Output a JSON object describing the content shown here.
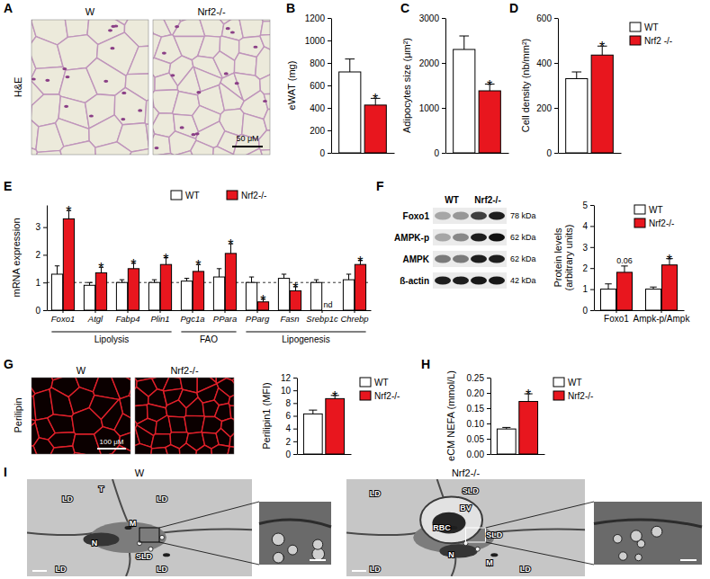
{
  "panel_labels": [
    "A",
    "B",
    "C",
    "D",
    "E",
    "F",
    "G",
    "H",
    "I"
  ],
  "panel_a": {
    "columns": [
      "W",
      "Nrf2-/-"
    ],
    "row_label": "H&E",
    "scale_bar": "50 μM"
  },
  "panel_f_blot": {
    "columns": [
      "WT",
      "Nrf2-/-"
    ],
    "rows": [
      {
        "label": "Foxo1",
        "size": "78 kDa"
      },
      {
        "label": "AMPK-p",
        "size": "62 kDa"
      },
      {
        "label": "AMPK",
        "size": "62 kDa"
      },
      {
        "label": "ß-actin",
        "size": "42 kDa"
      }
    ]
  },
  "panel_g": {
    "columns": [
      "W",
      "Nrf2-/-"
    ],
    "row_label": "Perilipin",
    "scale_bar": "100 μM"
  },
  "panel_i": {
    "columns": [
      {
        "title": "W",
        "labels": [
          "T",
          "LD",
          "LD",
          "M",
          "N",
          "SLD",
          "LD",
          "LD"
        ]
      },
      {
        "title": "Nrf2-/-",
        "labels": [
          "LD",
          "SLD",
          "BV",
          "RBC",
          "SLD",
          "N",
          "M",
          "LD",
          "LD"
        ]
      }
    ]
  },
  "chart_data": [
    {
      "type": "bar",
      "y_label": "eWAT (mg)",
      "categories": [
        null
      ],
      "ylim": [
        0,
        1200
      ],
      "yticks": [
        0,
        200,
        400,
        600,
        800,
        1000,
        1200
      ],
      "series": [
        {
          "color": "#ffffff",
          "values": [
            720
          ],
          "errors": [
            115
          ],
          "annotations": [
            null
          ]
        },
        {
          "color": "#e8161e",
          "values": [
            425
          ],
          "errors": [
            60
          ],
          "annotations": [
            "*"
          ]
        }
      ]
    },
    {
      "type": "bar",
      "y_label": "Adipocytes size (μm²)",
      "categories": [
        null
      ],
      "ylim": [
        0,
        3000
      ],
      "yticks": [
        0,
        1000,
        2000,
        3000
      ],
      "series": [
        {
          "color": "#ffffff",
          "values": [
            2300
          ],
          "errors": [
            300
          ],
          "annotations": [
            null
          ]
        },
        {
          "color": "#e8161e",
          "values": [
            1380
          ],
          "errors": [
            150
          ],
          "annotations": [
            "*"
          ]
        }
      ]
    },
    {
      "type": "bar",
      "y_label": "Cell density (nb/mm²)",
      "categories": [
        null
      ],
      "ylim": [
        0,
        600
      ],
      "yticks": [
        0,
        200,
        400,
        600
      ],
      "legend": "top-right",
      "series": [
        {
          "name": "WT",
          "color": "#ffffff",
          "values": [
            330
          ],
          "errors": [
            30
          ],
          "annotations": [
            null
          ]
        },
        {
          "name": "Nrf2 -/-",
          "color": "#e8161e",
          "values": [
            435
          ],
          "errors": [
            40
          ],
          "annotations": [
            "*"
          ]
        }
      ]
    },
    {
      "type": "bar",
      "y_label": "mRNA expression",
      "categories": [
        "Foxo1",
        "Atgl",
        "Fabp4",
        "Plin1",
        "Pgc1a",
        "PPara",
        "PParg",
        "Fasn",
        "Srebp1c",
        "Chrebp"
      ],
      "ylim": [
        0,
        3.8
      ],
      "yticks": [
        0,
        1,
        2,
        3
      ],
      "reference_value": 1,
      "legend": "top",
      "groups": [
        {
          "label": "Lipolysis",
          "categories": [
            "Foxo1",
            "Atgl",
            "Fabp4",
            "Plin1"
          ]
        },
        {
          "label": "FAO",
          "categories": [
            "Pgc1a",
            "PPara"
          ]
        },
        {
          "label": "Lipogenesis",
          "categories": [
            "PParg",
            "Fasn",
            "Srebp1c",
            "Chrebp"
          ]
        }
      ],
      "series": [
        {
          "name": "WT",
          "color": "#ffffff",
          "values": [
            1.3,
            0.9,
            1.0,
            1.0,
            1.05,
            1.2,
            1.0,
            1.15,
            1.0,
            1.1
          ],
          "errors": [
            0.3,
            0.1,
            0.1,
            0.1,
            0.1,
            0.3,
            0.2,
            0.15,
            0.1,
            0.2
          ],
          "annotations": [
            null,
            null,
            null,
            null,
            null,
            null,
            null,
            null,
            null,
            null
          ]
        },
        {
          "name": "Nrf2-/-",
          "color": "#e8161e",
          "values": [
            3.3,
            1.35,
            1.5,
            1.65,
            1.4,
            2.05,
            0.3,
            0.7,
            null,
            1.65
          ],
          "errors": [
            0.3,
            0.2,
            0.2,
            0.25,
            0.25,
            0.35,
            0.1,
            0.15,
            null,
            0.15
          ],
          "annotations": [
            "*",
            "*",
            "*",
            "*",
            "*",
            "*",
            "*",
            "*",
            "nd",
            "*"
          ]
        }
      ]
    },
    {
      "type": "bar",
      "y_label": [
        "Protein levels",
        "(arbitrary units)"
      ],
      "categories": [
        "Foxo1",
        "Ampk-p/Ampk"
      ],
      "ylim": [
        0,
        5
      ],
      "yticks": [
        0,
        1,
        2,
        3,
        4,
        5
      ],
      "legend": "top-right",
      "series": [
        {
          "name": "WT",
          "color": "#ffffff",
          "values": [
            1.0,
            1.0
          ],
          "errors": [
            0.25,
            0.1
          ],
          "annotations": [
            null,
            null
          ]
        },
        {
          "name": "Nrf2-/-",
          "color": "#e8161e",
          "values": [
            1.8,
            2.15
          ],
          "errors": [
            0.3,
            0.3
          ],
          "annotations": [
            "0.06",
            "*"
          ]
        }
      ]
    },
    {
      "type": "bar",
      "y_label": "Perilipin1 (MFI)",
      "categories": [
        null
      ],
      "ylim": [
        0,
        12
      ],
      "yticks": [
        0,
        2,
        4,
        6,
        8,
        10,
        12
      ],
      "legend": "top-right",
      "series": [
        {
          "name": "WT",
          "color": "#ffffff",
          "values": [
            6.3
          ],
          "errors": [
            0.6
          ],
          "annotations": [
            null
          ]
        },
        {
          "name": "Nrf2-/-",
          "color": "#e8161e",
          "values": [
            8.7
          ],
          "errors": [
            0.5
          ],
          "annotations": [
            "*"
          ]
        }
      ]
    },
    {
      "type": "bar",
      "y_label": "eCM NEFA (mmol/L)",
      "categories": [
        null
      ],
      "ylim": [
        0,
        0.25
      ],
      "yticks": [
        {
          "value": 0,
          "label": "0.00"
        },
        0.05,
        {
          "value": 0.1,
          "label": "0.10"
        },
        0.15,
        {
          "value": 0.2,
          "label": "0.20"
        },
        0.25
      ],
      "legend": "top-right",
      "series": [
        {
          "name": "WT",
          "color": "#ffffff",
          "values": [
            0.082
          ],
          "errors": [
            0.005
          ],
          "annotations": [
            null
          ]
        },
        {
          "name": "Nrf2-/-",
          "color": "#e8161e",
          "values": [
            0.172
          ],
          "errors": [
            0.025
          ],
          "annotations": [
            "*"
          ]
        }
      ]
    }
  ]
}
